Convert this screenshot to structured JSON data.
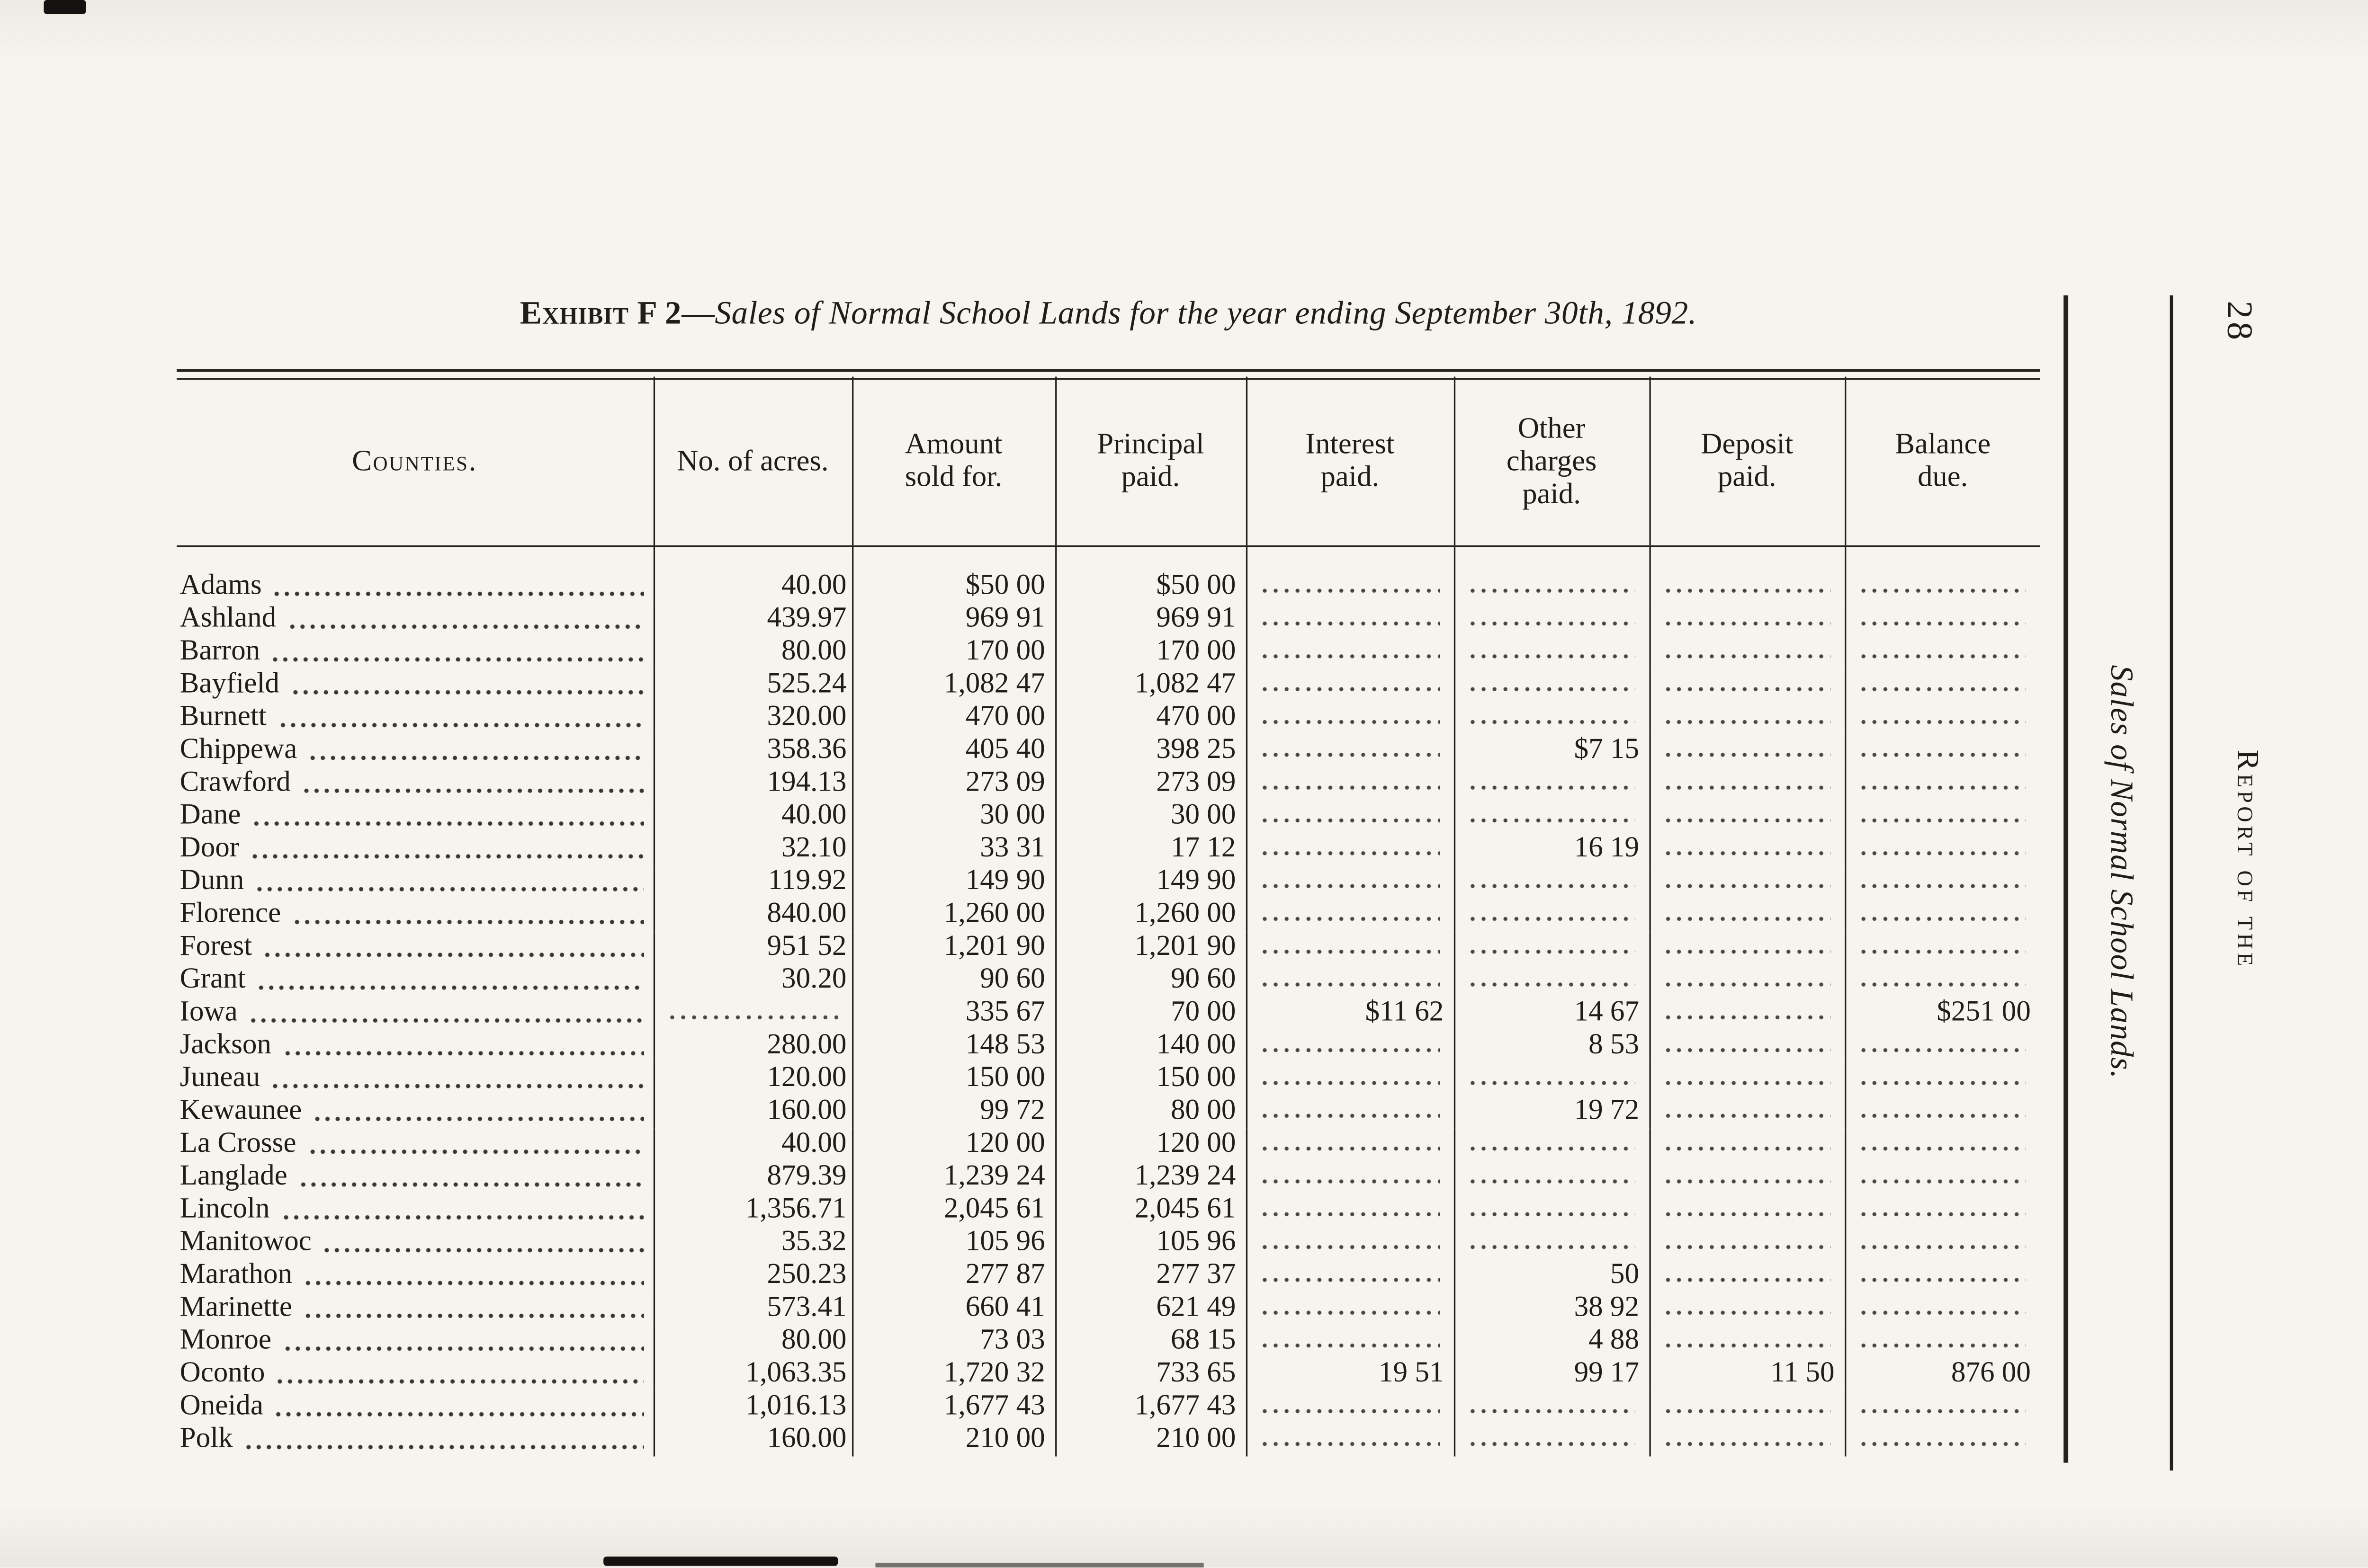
{
  "page": {
    "number": "28",
    "margin_side_title": "Sales of Normal School Lands.",
    "margin_running_head": "Report of the"
  },
  "table": {
    "title_prefix": "Exhibit F 2—",
    "title": "Sales of Normal School Lands for the year ending September 30th, 1892.",
    "columns": [
      "Counties.",
      "No. of acres.",
      "Amount sold for.",
      "Principal paid.",
      "Interest paid.",
      "Other charges paid.",
      "Deposit paid.",
      "Balance due."
    ],
    "rows": [
      [
        "Adams",
        "40.00",
        "$50 00",
        "$50 00",
        "",
        "",
        "",
        ""
      ],
      [
        "Ashland",
        "439.97",
        "969 91",
        "969 91",
        "",
        "",
        "",
        ""
      ],
      [
        "Barron",
        "80.00",
        "170 00",
        "170 00",
        "",
        "",
        "",
        ""
      ],
      [
        "Bayfield",
        "525.24",
        "1,082 47",
        "1,082 47",
        "",
        "",
        "",
        ""
      ],
      [
        "Burnett",
        "320.00",
        "470 00",
        "470 00",
        "",
        "",
        "",
        ""
      ],
      [
        "Chippewa",
        "358.36",
        "405 40",
        "398 25",
        "",
        "$7 15",
        "",
        ""
      ],
      [
        "Crawford",
        "194.13",
        "273 09",
        "273 09",
        "",
        "",
        "",
        ""
      ],
      [
        "Dane",
        "40.00",
        "30 00",
        "30 00",
        "",
        "",
        "",
        ""
      ],
      [
        "Door",
        "32.10",
        "33 31",
        "17 12",
        "",
        "16 19",
        "",
        ""
      ],
      [
        "Dunn",
        "119.92",
        "149 90",
        "149 90",
        "",
        "",
        "",
        ""
      ],
      [
        "Florence",
        "840.00",
        "1,260 00",
        "1,260 00",
        "",
        "",
        "",
        ""
      ],
      [
        "Forest",
        "951 52",
        "1,201 90",
        "1,201 90",
        "",
        "",
        "",
        ""
      ],
      [
        "Grant",
        "30.20",
        "90 60",
        "90 60",
        "",
        "",
        "",
        ""
      ],
      [
        "Iowa",
        "",
        "335 67",
        "70 00",
        "$11 62",
        "14 67",
        "",
        "$251 00"
      ],
      [
        "Jackson",
        "280.00",
        "148 53",
        "140 00",
        "",
        "8 53",
        "",
        ""
      ],
      [
        "Juneau",
        "120.00",
        "150 00",
        "150 00",
        "",
        "",
        "",
        ""
      ],
      [
        "Kewaunee",
        "160.00",
        "99 72",
        "80 00",
        "",
        "19 72",
        "",
        ""
      ],
      [
        "La Crosse",
        "40.00",
        "120 00",
        "120 00",
        "",
        "",
        "",
        ""
      ],
      [
        "Langlade",
        "879.39",
        "1,239 24",
        "1,239 24",
        "",
        "",
        "",
        ""
      ],
      [
        "Lincoln",
        "1,356.71",
        "2,045 61",
        "2,045 61",
        "",
        "",
        "",
        ""
      ],
      [
        "Manitowoc",
        "35.32",
        "105 96",
        "105 96",
        "",
        "",
        "",
        ""
      ],
      [
        "Marathon",
        "250.23",
        "277 87",
        "277 37",
        "",
        "50",
        "",
        ""
      ],
      [
        "Marinette",
        "573.41",
        "660 41",
        "621 49",
        "",
        "38 92",
        "",
        ""
      ],
      [
        "Monroe",
        "80.00",
        "73 03",
        "68 15",
        "",
        "4 88",
        "",
        ""
      ],
      [
        "Oconto",
        "1,063.35",
        "1,720 32",
        "733 65",
        "19 51",
        "99 17",
        "11 50",
        "876 00"
      ],
      [
        "Oneida",
        "1,016.13",
        "1,677 43",
        "1,677 43",
        "",
        "",
        "",
        ""
      ],
      [
        "Polk",
        "160.00",
        "210 00",
        "210 00",
        "",
        "",
        "",
        ""
      ]
    ]
  }
}
